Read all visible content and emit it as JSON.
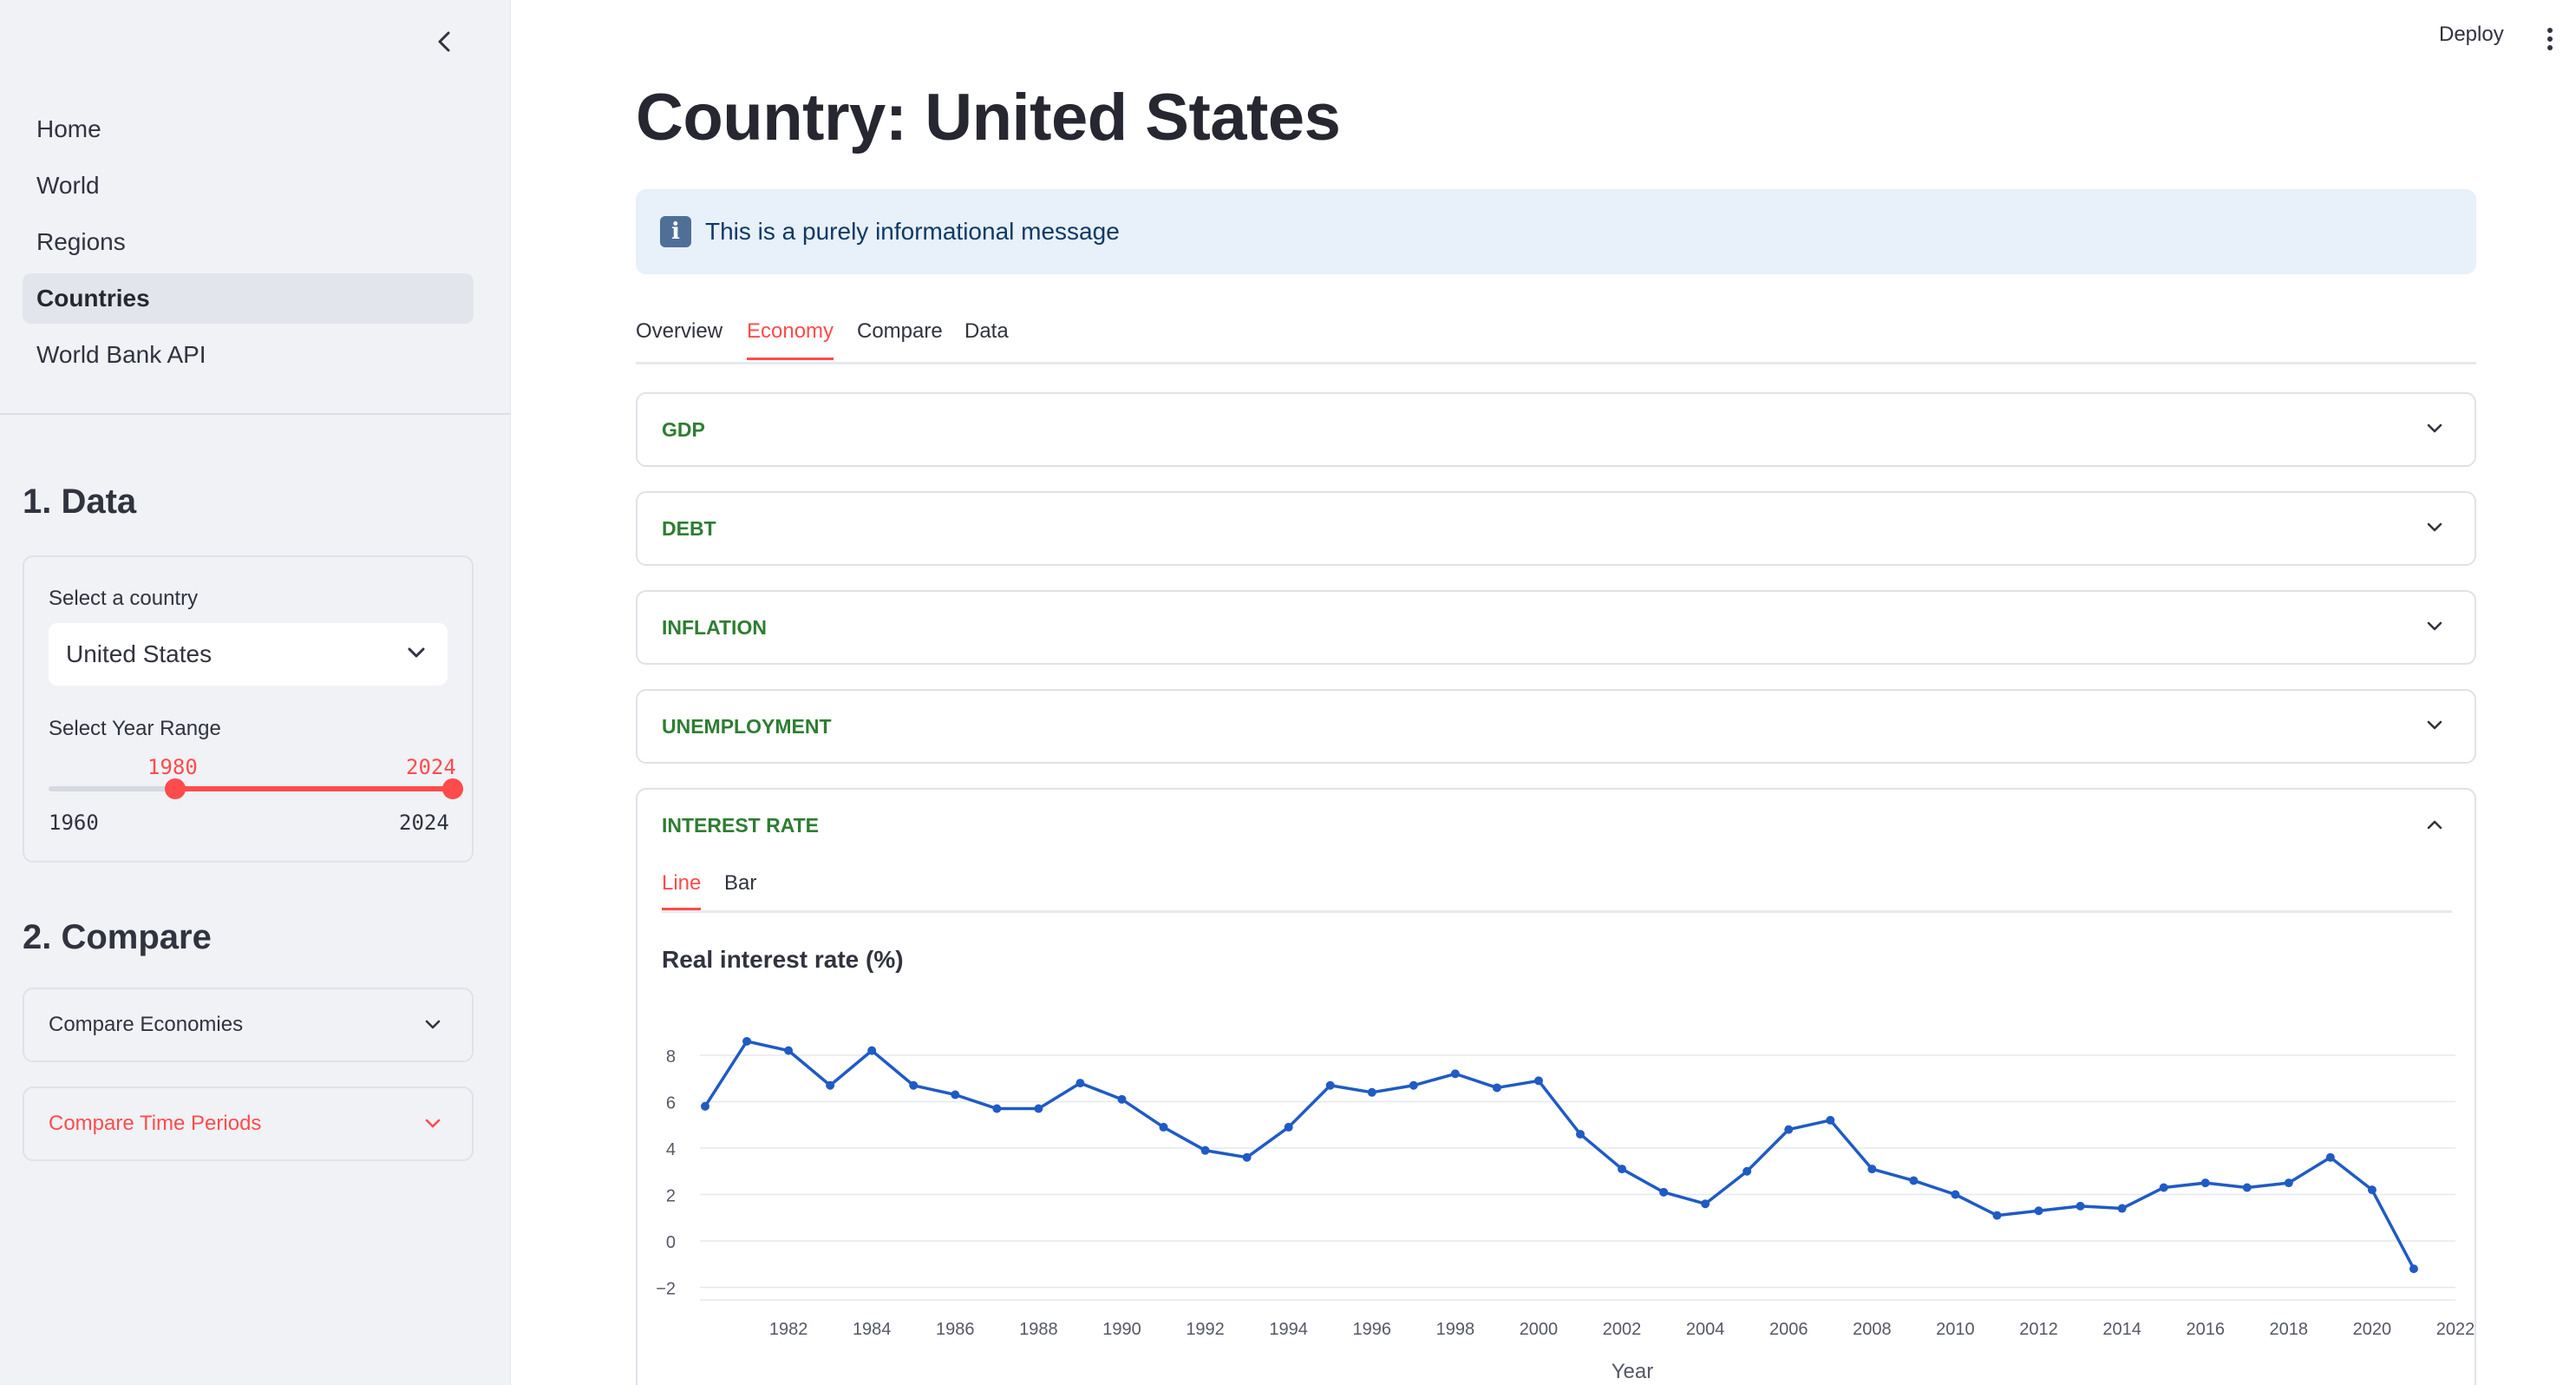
{
  "sidebar": {
    "nav": [
      {
        "label": "Home",
        "active": false
      },
      {
        "label": "World",
        "active": false
      },
      {
        "label": "Regions",
        "active": false
      },
      {
        "label": "Countries",
        "active": true
      },
      {
        "label": "World Bank API",
        "active": false
      }
    ],
    "data_section": {
      "title": "1. Data",
      "country_label": "Select a country",
      "country_value": "United States",
      "year_label": "Select Year Range",
      "range_min": 1960,
      "range_max": 2024,
      "selected_start": "1980",
      "selected_end": "2024",
      "min_label": "1960",
      "max_label": "2024"
    },
    "compare_section": {
      "title": "2. Compare",
      "economies_label": "Compare Economies",
      "periods_label": "Compare Time Periods"
    }
  },
  "topbar": {
    "deploy": "Deploy"
  },
  "main": {
    "title": "Country: United States",
    "info_message": "This is a purely informational message",
    "tabs": [
      {
        "label": "Overview",
        "active": false
      },
      {
        "label": "Economy",
        "active": true
      },
      {
        "label": "Compare",
        "active": false
      },
      {
        "label": "Data",
        "active": false
      }
    ],
    "expanders": [
      "GDP",
      "DEBT",
      "INFLATION",
      "UNEMPLOYMENT"
    ],
    "open_expander": {
      "label": "INTEREST RATE",
      "subtabs": [
        {
          "label": "Line",
          "active": true
        },
        {
          "label": "Bar",
          "active": false
        }
      ],
      "chart_title": "Real interest rate (%)"
    }
  },
  "colors": {
    "accent": "#ff4b4b",
    "expander_label": "#2e7d32",
    "line": "#1f5bc4",
    "info_bg": "#e8f0f9",
    "sidebar_bg": "#f0f2f6"
  },
  "chart_data": {
    "type": "line",
    "title": "Real interest rate (%)",
    "xlabel": "Year",
    "ylabel": "",
    "x": [
      1980,
      1981,
      1982,
      1983,
      1984,
      1985,
      1986,
      1987,
      1988,
      1989,
      1990,
      1991,
      1992,
      1993,
      1994,
      1995,
      1996,
      1997,
      1998,
      1999,
      2000,
      2001,
      2002,
      2003,
      2004,
      2005,
      2006,
      2007,
      2008,
      2009,
      2010,
      2011,
      2012,
      2013,
      2014,
      2015,
      2016,
      2017,
      2018,
      2019,
      2020,
      2021
    ],
    "values": [
      5.8,
      8.6,
      8.2,
      6.7,
      8.2,
      6.7,
      6.3,
      5.7,
      5.7,
      6.8,
      6.1,
      4.9,
      3.9,
      3.6,
      4.9,
      6.7,
      6.4,
      6.7,
      7.2,
      6.6,
      6.9,
      4.6,
      3.1,
      2.1,
      1.6,
      3.0,
      4.8,
      5.2,
      3.1,
      2.6,
      2.0,
      1.1,
      1.3,
      1.5,
      1.4,
      2.3,
      2.5,
      2.3,
      2.5,
      3.6,
      2.2,
      -1.2
    ],
    "xticks": [
      "1982",
      "1984",
      "1986",
      "1988",
      "1990",
      "1992",
      "1994",
      "1996",
      "1998",
      "2000",
      "2002",
      "2004",
      "2006",
      "2008",
      "2010",
      "2012",
      "2014",
      "2016",
      "2018",
      "2020",
      "2022"
    ],
    "yticks": [
      "8",
      "6",
      "4",
      "2",
      "0",
      "−2"
    ],
    "ylim": [
      -2,
      9
    ],
    "grid": true
  }
}
